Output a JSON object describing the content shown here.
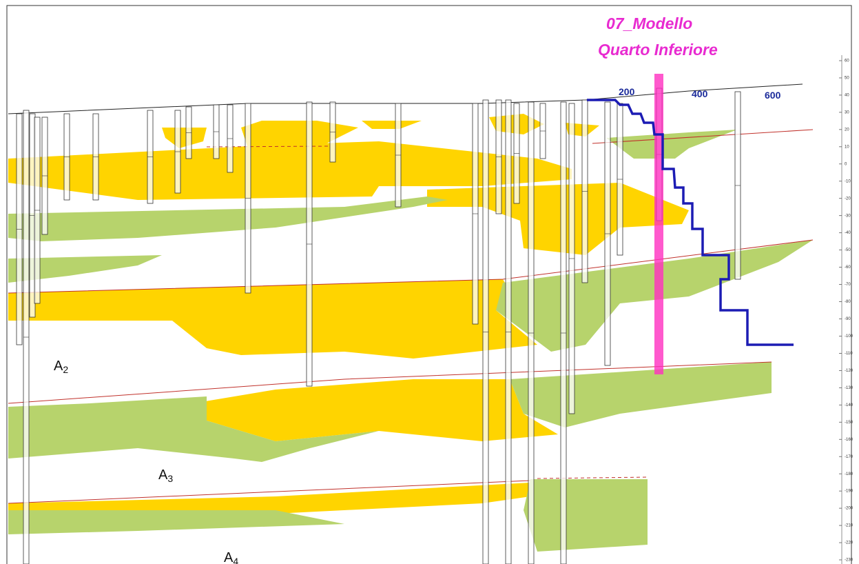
{
  "header": {
    "title_line1": "07_Modello",
    "title_line2": "Quarto Inferiore"
  },
  "distance_axis": {
    "labels": [
      "200",
      "400",
      "600"
    ]
  },
  "depth_axis": {
    "ticks": [
      60,
      50,
      40,
      30,
      20,
      10,
      0,
      -10,
      -20,
      -30,
      -40,
      -50,
      -60,
      -70,
      -80,
      -90,
      -100,
      -110,
      -120,
      -130,
      -140,
      -150,
      -160,
      -170,
      -180,
      -190,
      -200,
      -210,
      -220,
      -230
    ]
  },
  "units": [
    {
      "letter": "A",
      "index": "2"
    },
    {
      "letter": "A",
      "index": "3"
    },
    {
      "letter": "A",
      "index": "4"
    }
  ]
}
